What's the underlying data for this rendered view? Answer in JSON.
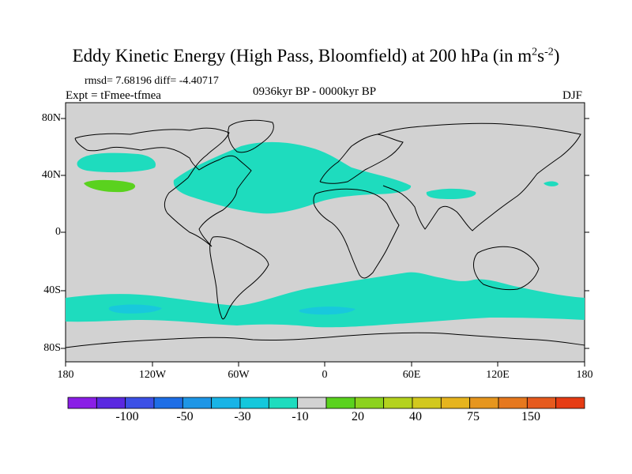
{
  "title": {
    "main": "Eddy Kinetic Energy (High Pass, Bloomfield) at 200 hPa (in m",
    "sup1": "2",
    "mid": "s",
    "sup2": "-2",
    "end": ")"
  },
  "stats": "rmsd= 7.68196 diff= -4.40717",
  "experiment": "Expt = tFmee-tfmea",
  "period": "0936kyr BP - 0000kyr BP",
  "season": "DJF",
  "lat_labels": [
    "80N",
    "40N",
    "0",
    "40S",
    "80S"
  ],
  "lon_labels": [
    "180",
    "120W",
    "60W",
    "0",
    "60E",
    "120E",
    "180"
  ],
  "colorbar": {
    "colors": [
      "#8a1ee6",
      "#5a28e0",
      "#3c50e6",
      "#1e6ee6",
      "#1e96e6",
      "#18b4e6",
      "#14c8dc",
      "#1edcbe",
      "#d2d2d2",
      "#5ad21e",
      "#8cd21e",
      "#b4d21e",
      "#d2c81e",
      "#e6b41e",
      "#e6961e",
      "#e6781e",
      "#e65a1e",
      "#e63c14"
    ],
    "labels": [
      "-100",
      "-50",
      "-30",
      "-10",
      "20",
      "40",
      "75",
      "150"
    ]
  },
  "map_colors": {
    "background": "#d2d2d2",
    "cyan": "#1edcbe",
    "green": "#5ad21e",
    "blue_cyan": "#18c8dc"
  }
}
